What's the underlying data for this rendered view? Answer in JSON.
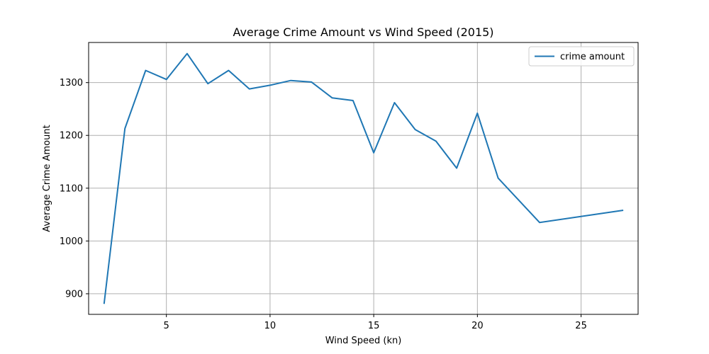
{
  "chart_data": {
    "type": "line",
    "title": "Average Crime Amount vs Wind Speed (2015)",
    "xlabel": "Wind Speed (kn)",
    "ylabel": "Average Crime Amount",
    "xlim": [
      1.25,
      27.75
    ],
    "ylim": [
      861,
      1376
    ],
    "xticks": [
      5,
      10,
      15,
      20,
      25
    ],
    "yticks": [
      900,
      1000,
      1100,
      1200,
      1300
    ],
    "grid": true,
    "legend_position": "top-right",
    "series": [
      {
        "name": "crime amount",
        "color": "#1f77b4",
        "x": [
          2,
          3,
          4,
          5,
          6,
          7,
          8,
          9,
          10,
          11,
          12,
          13,
          14,
          15,
          16,
          17,
          18,
          19,
          20,
          21,
          23,
          27
        ],
        "y": [
          882,
          1213,
          1323,
          1306,
          1355,
          1298,
          1323,
          1288,
          1295,
          1304,
          1301,
          1271,
          1266,
          1167,
          1262,
          1211,
          1189,
          1138,
          1242,
          1119,
          1035,
          1058
        ]
      }
    ]
  }
}
